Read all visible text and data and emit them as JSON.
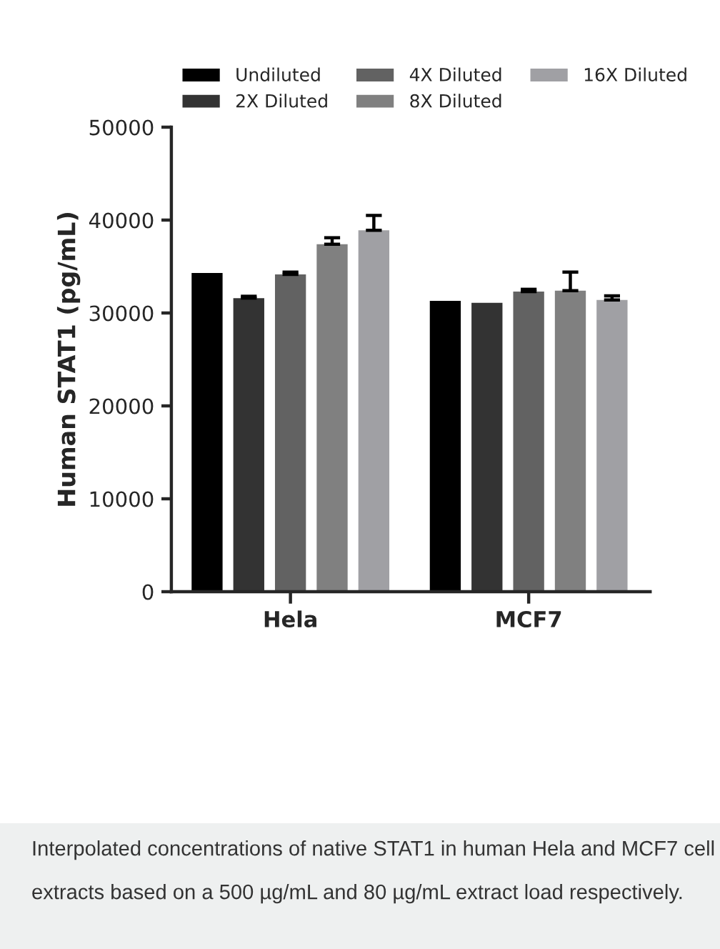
{
  "chart_data": {
    "type": "bar",
    "categories": [
      "Hela",
      "MCF7"
    ],
    "ylabel": "Human STAT1 (pg/mL)",
    "ylim": [
      0,
      50000
    ],
    "yticks": [
      0,
      10000,
      20000,
      30000,
      40000,
      50000
    ],
    "series": [
      {
        "name": "Undiluted",
        "color": "#000000",
        "values": [
          34300,
          31300
        ]
      },
      {
        "name": "2X Diluted",
        "color": "#333333",
        "values": [
          31600,
          31100
        ],
        "errors": [
          [
            31600,
            31800
          ],
          null
        ]
      },
      {
        "name": "4X Diluted",
        "color": "#626262",
        "values": [
          34150,
          32300
        ],
        "errors": [
          [
            34150,
            34400
          ],
          [
            32300,
            32550
          ]
        ]
      },
      {
        "name": "8X Diluted",
        "color": "#808080",
        "values": [
          37400,
          32400
        ],
        "errors": [
          [
            37400,
            38100
          ],
          [
            32400,
            34400
          ]
        ]
      },
      {
        "name": "16X Diluted",
        "color": "#a0a0a4",
        "values": [
          38900,
          31400
        ],
        "errors": [
          [
            38900,
            40500
          ],
          [
            31400,
            31850
          ]
        ]
      }
    ],
    "legend": "top",
    "grid": false,
    "annotations": [
      "Interpolated concentrations of native STAT1 in human Hela and MCF7 cell extracts based on a 500 µg/mL and 80 µg/mL extract load respectively."
    ]
  }
}
